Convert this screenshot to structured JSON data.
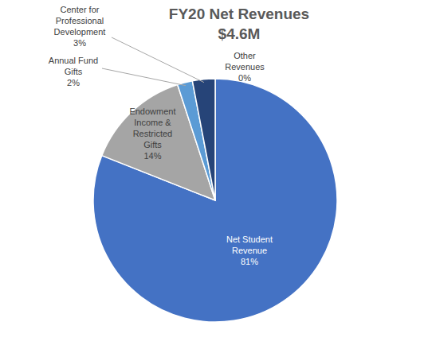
{
  "chart_data": {
    "type": "pie",
    "title": "FY20 Net Revenues",
    "subtitle": "$4.6M",
    "categories": [
      "Net Student Revenue",
      "Endowment Income & Restricted Gifts",
      "Annual Fund Gifts",
      "Center for Professional Development",
      "Other Revenues"
    ],
    "values": [
      81,
      14,
      2,
      3,
      0
    ],
    "value_labels": [
      "81%",
      "14%",
      "2%",
      "3%",
      "0%"
    ],
    "colors": [
      "#4472c4",
      "#a5a5a5",
      "#5b9bd5",
      "#264478",
      "#9e480e"
    ],
    "data_labels": true
  }
}
